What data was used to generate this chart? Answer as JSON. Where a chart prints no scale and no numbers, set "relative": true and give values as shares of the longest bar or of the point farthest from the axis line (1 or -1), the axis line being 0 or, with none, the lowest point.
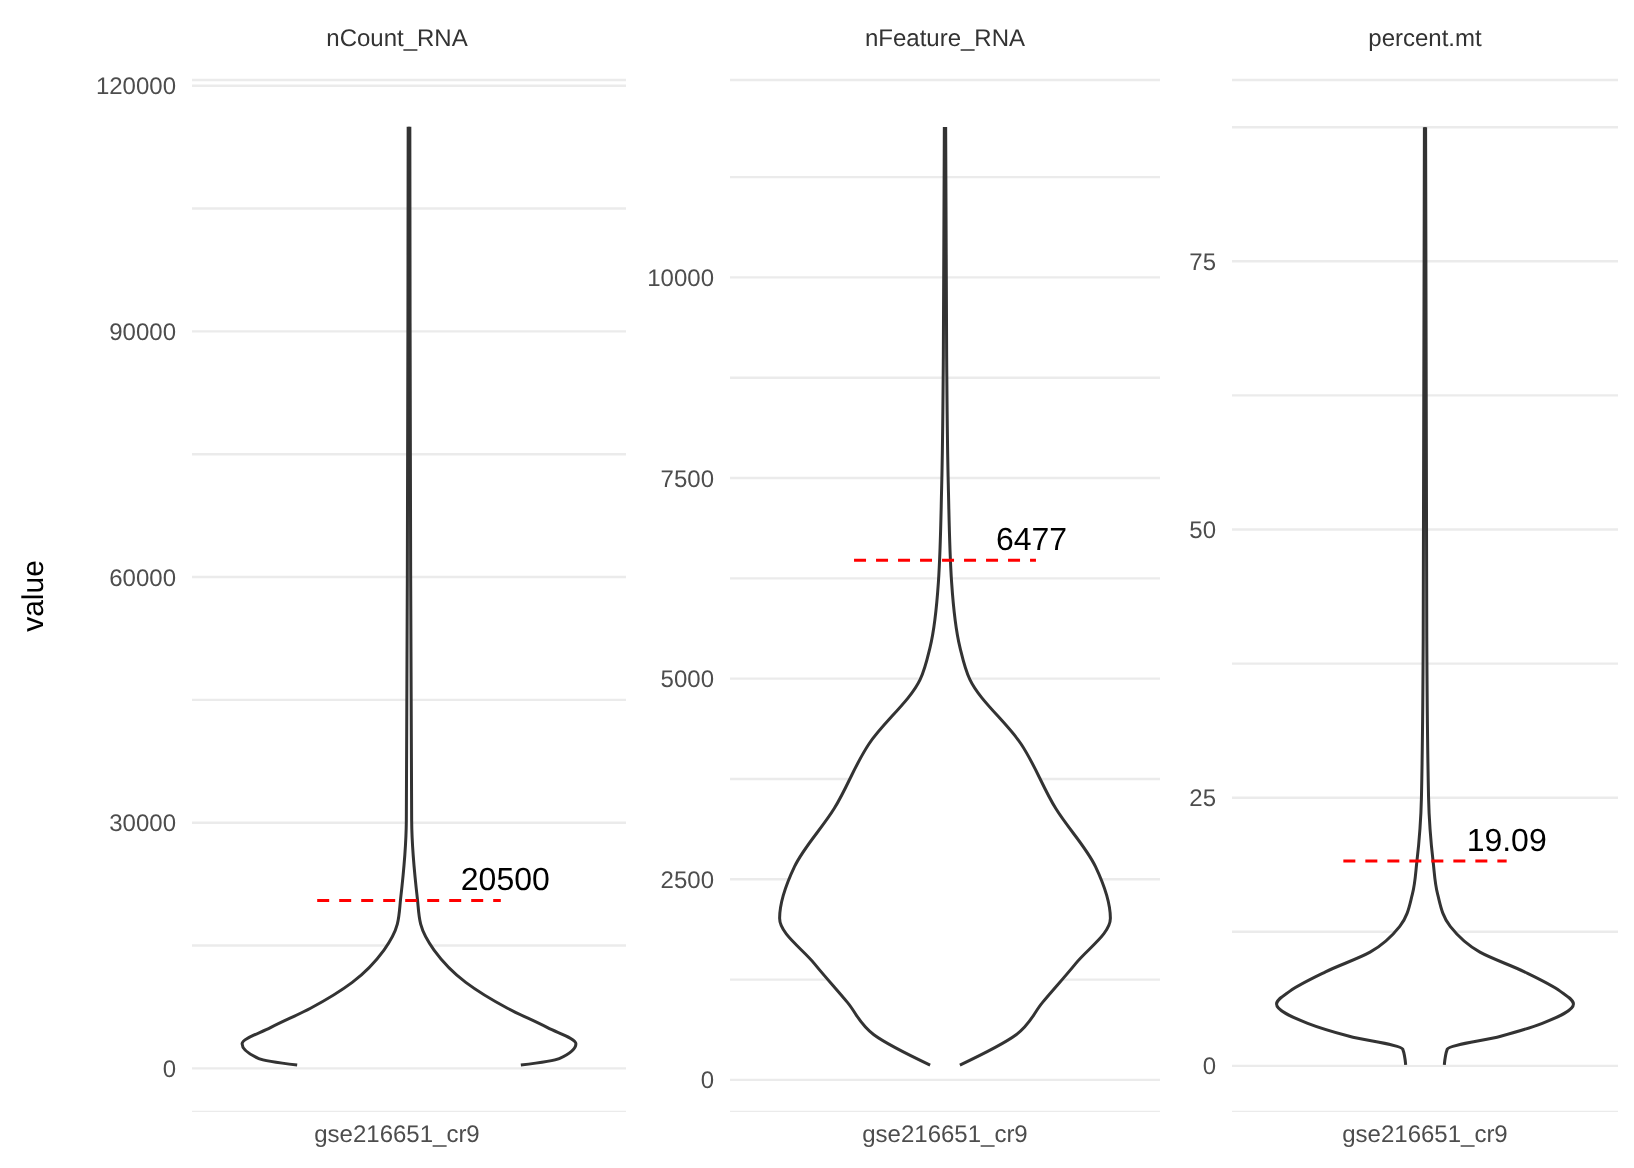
{
  "chart_data": [
    {
      "type": "area",
      "orientation": "horizontal",
      "title": "nCount_RNA",
      "xlabel": "gse216651_cr9",
      "ylabel": "value",
      "relative": true,
      "color": "#333333",
      "grid": "y",
      "x": [
        400,
        1200,
        3000,
        4970,
        7340,
        10500,
        14440,
        17600,
        20750,
        30200,
        60000,
        115000
      ],
      "values": [
        0.67,
        0.9,
        1,
        0.83,
        0.59,
        0.34,
        0.15,
        0.07,
        0.05,
        0.016,
        0.01,
        0.005
      ],
      "ylim": [
        -5330,
        120700
      ],
      "yticks": [
        0,
        {
          "value": 15000,
          "label": null
        },
        30000,
        {
          "value": 45000,
          "label": null
        },
        60000,
        {
          "value": 75000,
          "label": null
        },
        90000,
        {
          "value": 105000,
          "label": null
        },
        120000
      ],
      "ref_lines": [
        {
          "axis": "y",
          "value": 20500,
          "label": "20500",
          "color": "#ff0000",
          "line_style": "dashed"
        }
      ]
    },
    {
      "type": "area",
      "orientation": "horizontal",
      "title": "nFeature_RNA",
      "xlabel": "gse216651_cr9",
      "relative": true,
      "color": "#333333",
      "grid": "y",
      "x": [
        185,
        563,
        966,
        1449,
        2013,
        2657,
        3381,
        4186,
        4991,
        5394,
        6199,
        7406,
        9016,
        11874
      ],
      "values": [
        0.09,
        0.43,
        0.59,
        0.79,
        1,
        0.91,
        0.67,
        0.46,
        0.15,
        0.09,
        0.04,
        0.02,
        0.01,
        0.004
      ],
      "ylim": [
        -400,
        12460
      ],
      "yticks": [
        0,
        {
          "value": 1250,
          "label": null
        },
        2500,
        {
          "value": 3750,
          "label": null
        },
        5000,
        {
          "value": 6250,
          "label": null
        },
        7500,
        {
          "value": 8750,
          "label": null
        },
        10000,
        {
          "value": 11250,
          "label": null
        }
      ],
      "ref_lines": [
        {
          "axis": "y",
          "value": 6477,
          "label": "6477",
          "color": "#ff0000",
          "line_style": "dashed"
        }
      ]
    },
    {
      "type": "area",
      "orientation": "horizontal",
      "title": "percent.mt",
      "xlabel": "gse216651_cr9",
      "relative": true,
      "color": "#333333",
      "grid": "y",
      "x": [
        0.1,
        1.56,
        2.76,
        3.97,
        5.77,
        6.97,
        8.77,
        10.6,
        13,
        16,
        19,
        25,
        40,
        87.5
      ],
      "values": [
        0.13,
        0.15,
        0.51,
        0.79,
        1,
        0.91,
        0.67,
        0.37,
        0.17,
        0.085,
        0.055,
        0.024,
        0.012,
        0.004
      ],
      "ylim": [
        -4.3,
        91.9
      ],
      "yticks": [
        0,
        {
          "value": 12.5,
          "label": null
        },
        25,
        {
          "value": 37.5,
          "label": null
        },
        50,
        {
          "value": 62.5,
          "label": null
        },
        75,
        {
          "value": 87.5,
          "label": null
        }
      ],
      "ref_lines": [
        {
          "axis": "y",
          "value": 19.09,
          "label": "19.09",
          "color": "#ff0000",
          "line_style": "dashed"
        }
      ]
    }
  ]
}
